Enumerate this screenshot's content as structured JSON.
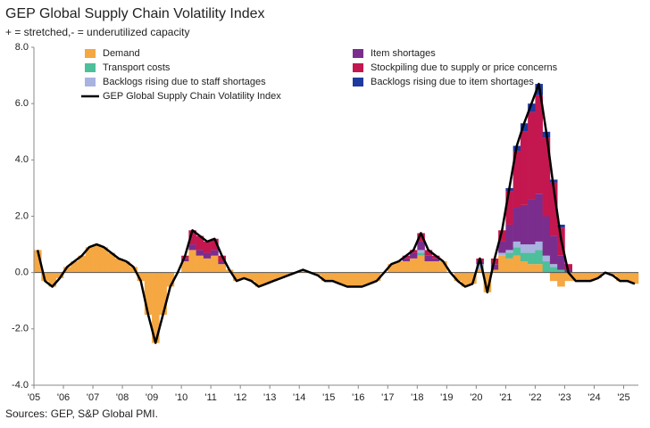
{
  "chart_data": {
    "type": "stacked_bar_line",
    "title": "GEP Global Supply Chain Volatility Index",
    "subtitle": "+ = stretched,- = underutilized capacity",
    "source": "Sources: GEP, S&P Global PMI.",
    "categories": [
      "'05",
      null,
      null,
      null,
      "'06",
      null,
      null,
      null,
      "'07",
      null,
      null,
      null,
      "'08",
      null,
      null,
      null,
      "'09",
      null,
      null,
      null,
      "'10",
      null,
      null,
      null,
      "'11",
      null,
      null,
      null,
      "'12",
      null,
      null,
      null,
      "'13",
      null,
      null,
      null,
      "'14",
      null,
      null,
      null,
      "'15",
      null,
      null,
      null,
      "'16",
      null,
      null,
      null,
      "'17",
      null,
      null,
      null,
      "'18",
      null,
      null,
      null,
      "'19",
      null,
      null,
      null,
      "'20",
      null,
      null,
      null,
      "'21",
      null,
      null,
      null,
      "'22",
      null,
      null,
      null,
      "'23",
      null,
      null,
      null,
      "'24",
      null,
      null,
      null,
      "'25",
      null
    ],
    "ylim": [
      -4,
      8
    ],
    "yticks": [
      {
        "value": 8,
        "label": "8.0"
      },
      {
        "value": 6,
        "label": "6.0"
      },
      {
        "value": 4,
        "label": "4.0"
      },
      {
        "value": 2,
        "label": "2.0"
      },
      {
        "value": 0,
        "label": "0.0"
      },
      {
        "value": -2,
        "label": "-2.0"
      },
      {
        "value": -4,
        "label": "-4.0"
      }
    ],
    "series": [
      {
        "name": "Demand",
        "color": "#f5a742",
        "values": [
          0.8,
          -0.3,
          -0.5,
          -0.2,
          0.2,
          0.4,
          0.6,
          0.9,
          1.0,
          0.9,
          0.7,
          0.5,
          0.4,
          0.2,
          -0.3,
          -1.5,
          -2.5,
          -1.5,
          -0.5,
          0,
          0.4,
          0.8,
          0.6,
          0.5,
          0.6,
          0.3,
          0.1,
          -0.3,
          -0.2,
          -0.3,
          -0.5,
          -0.4,
          -0.3,
          -0.2,
          -0.1,
          0,
          0.1,
          0,
          -0.1,
          -0.3,
          -0.3,
          -0.4,
          -0.5,
          -0.5,
          -0.5,
          -0.4,
          -0.3,
          0,
          0.3,
          0.4,
          0.4,
          0.5,
          0.6,
          0.4,
          0.4,
          0.4,
          0,
          -0.3,
          -0.5,
          -0.4,
          0.1,
          -0.7,
          0.1,
          0.6,
          0.5,
          0.6,
          0.4,
          0.3,
          0.3,
          0,
          -0.3,
          -0.5,
          -0.3,
          -0.3,
          -0.3,
          -0.3,
          -0.2,
          0,
          -0.1,
          -0.3,
          -0.3,
          -0.4
        ]
      },
      {
        "name": "Transport costs",
        "color": "#4dbf9a",
        "values": [
          0,
          0,
          0,
          0,
          0,
          0,
          0,
          0,
          0,
          0,
          0,
          0,
          0,
          0,
          0,
          0,
          0,
          0,
          0,
          0,
          0,
          0,
          0,
          0,
          0,
          0,
          0,
          0,
          0,
          0,
          0,
          0,
          0,
          0,
          0,
          0,
          0,
          0,
          0,
          0,
          0,
          0,
          0,
          0,
          0,
          0,
          0,
          0,
          0,
          0,
          0,
          0,
          0.1,
          0,
          0,
          0,
          0,
          0,
          0,
          0,
          0,
          0,
          0,
          0,
          0.2,
          0.3,
          0.3,
          0.4,
          0.5,
          0.4,
          0.2,
          0.1,
          0,
          0,
          0,
          0,
          0,
          0,
          0,
          0,
          0,
          0
        ]
      },
      {
        "name": "Backlogs rising due to staff shortages",
        "color": "#a9b3e0",
        "values": [
          0,
          0,
          0,
          0,
          0,
          0,
          0,
          0,
          0,
          0,
          0,
          0,
          0,
          0,
          0,
          0,
          0,
          0,
          0,
          0,
          0,
          0,
          0,
          0,
          0,
          0,
          0,
          0,
          0,
          0,
          0,
          0,
          0,
          0,
          0,
          0,
          0,
          0,
          0,
          0,
          0,
          0,
          0,
          0,
          0,
          0,
          0,
          0,
          0,
          0,
          0,
          0,
          0.1,
          0,
          0,
          0,
          0,
          0,
          0,
          0,
          0.2,
          0,
          0,
          0.1,
          0.1,
          0.2,
          0.3,
          0.3,
          0.3,
          0.2,
          0.1,
          0,
          0,
          0,
          0,
          0,
          0,
          0,
          0,
          0,
          0,
          0
        ]
      },
      {
        "name": "Item shortages",
        "color": "#7b2d8e",
        "values": [
          0,
          0,
          0,
          0,
          0,
          0,
          0,
          0,
          0,
          0,
          0,
          0,
          0,
          0,
          0,
          0,
          0,
          0,
          0,
          0,
          0.1,
          0.2,
          0.2,
          0.2,
          0.2,
          0.1,
          0,
          0,
          0,
          0,
          0,
          0,
          0,
          0,
          0,
          0,
          0,
          0,
          0,
          0,
          0,
          0,
          0,
          0,
          0,
          0,
          0,
          0,
          0,
          0,
          0.1,
          0.2,
          0.3,
          0.2,
          0.1,
          0,
          0,
          0,
          0,
          0,
          0.1,
          0,
          0.2,
          0.4,
          0.9,
          1.2,
          1.4,
          1.6,
          1.7,
          1.4,
          1.0,
          0.5,
          0.1,
          0,
          0,
          0,
          0,
          0,
          0,
          0,
          0,
          0
        ]
      },
      {
        "name": "Stockpiling due to supply or price concerns",
        "color": "#c4174f",
        "values": [
          0,
          0,
          0,
          0,
          0,
          0,
          0,
          0,
          0,
          0,
          0,
          0,
          0,
          0,
          0,
          0,
          0,
          0,
          0,
          0,
          0.1,
          0.5,
          0.5,
          0.4,
          0.4,
          0.2,
          0,
          0,
          0,
          0,
          0,
          0,
          0,
          0,
          0,
          0,
          0,
          0,
          0,
          0,
          0,
          0,
          0,
          0,
          0,
          0,
          0,
          0,
          0,
          0,
          0.1,
          0.1,
          0.3,
          0.2,
          0.1,
          0,
          0,
          0,
          0,
          0,
          0.1,
          0,
          0.2,
          0.4,
          1.2,
          2.0,
          2.6,
          3.1,
          3.5,
          2.8,
          1.9,
          1.0,
          0.2,
          0,
          0,
          0,
          0,
          0,
          0,
          0,
          0,
          0
        ]
      },
      {
        "name": "Backlogs rising due to item shortages",
        "color": "#1f3a9e",
        "values": [
          0,
          0,
          0,
          0,
          0,
          0,
          0,
          0,
          0,
          0,
          0,
          0,
          0,
          0,
          0,
          0,
          0,
          0,
          0,
          0,
          0,
          0,
          0,
          0,
          0,
          0,
          0,
          0,
          0,
          0,
          0,
          0,
          0,
          0,
          0,
          0,
          0,
          0,
          0,
          0,
          0,
          0,
          0,
          0,
          0,
          0,
          0,
          0,
          0,
          0,
          0,
          0,
          0,
          0,
          0,
          0,
          0,
          0,
          0,
          0,
          0,
          0,
          0,
          0,
          0.1,
          0.2,
          0.3,
          0.3,
          0.4,
          0.2,
          0.1,
          0.1,
          0,
          0,
          0,
          0,
          0,
          0,
          0,
          0,
          0,
          0
        ]
      },
      {
        "name": "GEP Global Supply Chain Volatility Index",
        "color": "#000000",
        "type": "line",
        "values": [
          0.8,
          -0.3,
          -0.5,
          -0.2,
          0.2,
          0.4,
          0.6,
          0.9,
          1.0,
          0.9,
          0.7,
          0.5,
          0.4,
          0.2,
          -0.3,
          -1.5,
          -2.5,
          -1.5,
          -0.5,
          0,
          0.6,
          1.5,
          1.3,
          1.1,
          1.2,
          0.6,
          0.1,
          -0.3,
          -0.2,
          -0.3,
          -0.5,
          -0.4,
          -0.3,
          -0.2,
          -0.1,
          0,
          0.1,
          0,
          -0.1,
          -0.3,
          -0.3,
          -0.4,
          -0.5,
          -0.5,
          -0.5,
          -0.4,
          -0.3,
          0,
          0.3,
          0.4,
          0.6,
          0.8,
          1.4,
          0.8,
          0.6,
          0.4,
          0,
          -0.3,
          -0.5,
          -0.4,
          0.5,
          -0.7,
          0.5,
          1.5,
          3.0,
          4.5,
          5.3,
          6.0,
          6.7,
          5.0,
          3.0,
          1.2,
          0,
          -0.3,
          -0.3,
          -0.3,
          -0.2,
          0,
          -0.1,
          -0.3,
          -0.3,
          -0.4
        ]
      }
    ]
  }
}
